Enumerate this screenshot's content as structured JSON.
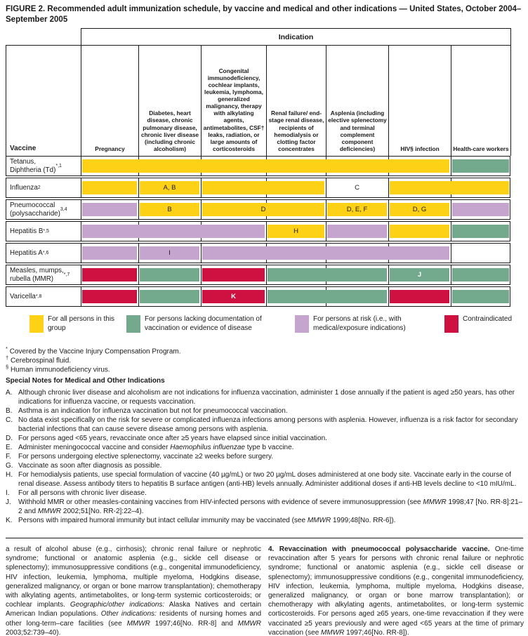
{
  "figure": {
    "title": "FIGURE 2. Recommended adult immunization schedule, by vaccine and medical and other indications — United States, October 2004–September 2005"
  },
  "colors": {
    "yellow": "#FCD116",
    "green": "#73AA8E",
    "purple": "#C5A5CE",
    "red": "#CE1141",
    "line": "#1a1a1a"
  },
  "table": {
    "indication_label": "Indication",
    "vaccine_col_header": "Vaccine",
    "columns": [
      {
        "label": "Pregnancy"
      },
      {
        "label": "Diabetes, heart disease, chronic pulmonary disease, chronic liver disease (including chronic alcoholism)"
      },
      {
        "label": "Congenital immunodeficiency, cochlear implants, leukemia, lymphoma, generalized malignancy, therapy with alkylating agents, antimetabolites, CSF† leaks, radiation, or large amounts of corticosteroids"
      },
      {
        "label": "Renal failure/ end-stage renal disease, recipients of hemodialysis or clotting factor concentrates"
      },
      {
        "label": "Asplenia (including elective splenectomy and terminal complement component deficiencies)"
      },
      {
        "label": "HIV§ infection"
      },
      {
        "label": "Health-care workers"
      }
    ],
    "rows": [
      {
        "vaccine": "Tetanus,\nDiphtheria (Td)",
        "sup": "*,1",
        "bars": [
          {
            "from": 0,
            "to": 5,
            "color": "yellow"
          },
          {
            "from": 6,
            "to": 6,
            "color": "green"
          }
        ]
      },
      {
        "vaccine": "Influenza",
        "sup": "2",
        "bars": [
          {
            "from": 0,
            "to": 0,
            "color": "yellow"
          },
          {
            "from": 1,
            "to": 1,
            "color": "yellow",
            "label": "A, B"
          },
          {
            "from": 2,
            "to": 3,
            "color": "yellow"
          },
          {
            "from": 4,
            "to": 4,
            "color": "none",
            "label": "C"
          },
          {
            "from": 5,
            "to": 6,
            "color": "yellow"
          }
        ]
      },
      {
        "vaccine": "Pneumococcal\n(polysaccharide)",
        "sup": "3,4",
        "bars": [
          {
            "from": 0,
            "to": 0,
            "color": "purple"
          },
          {
            "from": 1,
            "to": 1,
            "color": "yellow",
            "label": "B"
          },
          {
            "from": 2,
            "to": 3,
            "color": "yellow",
            "label": "D"
          },
          {
            "from": 4,
            "to": 4,
            "color": "yellow",
            "label": "D, E, F"
          },
          {
            "from": 5,
            "to": 5,
            "color": "yellow",
            "label": "D, G"
          },
          {
            "from": 6,
            "to": 6,
            "color": "purple"
          }
        ]
      },
      {
        "vaccine": "Hepatitis B",
        "sup": "*,5",
        "bars": [
          {
            "from": 0,
            "to": 2,
            "color": "purple"
          },
          {
            "from": 3,
            "to": 3,
            "color": "yellow",
            "label": "H"
          },
          {
            "from": 4,
            "to": 4,
            "color": "purple"
          },
          {
            "from": 5,
            "to": 5,
            "color": "yellow"
          },
          {
            "from": 6,
            "to": 6,
            "color": "green"
          }
        ]
      },
      {
        "vaccine": "Hepatitis A",
        "sup": "*,6",
        "bars": [
          {
            "from": 0,
            "to": 0,
            "color": "purple"
          },
          {
            "from": 1,
            "to": 1,
            "color": "purple",
            "label": "I"
          },
          {
            "from": 2,
            "to": 5,
            "color": "purple"
          }
        ]
      },
      {
        "vaccine": "Measles, mumps,\nrubella (MMR)",
        "sup": "*,7",
        "bars": [
          {
            "from": 0,
            "to": 0,
            "color": "red"
          },
          {
            "from": 1,
            "to": 1,
            "color": "green"
          },
          {
            "from": 2,
            "to": 2,
            "color": "red"
          },
          {
            "from": 3,
            "to": 4,
            "color": "green"
          },
          {
            "from": 5,
            "to": 5,
            "color": "green",
            "label": "J",
            "white": true
          },
          {
            "from": 6,
            "to": 6,
            "color": "green"
          }
        ]
      },
      {
        "vaccine": "Varicella",
        "sup": "*,8",
        "bars": [
          {
            "from": 0,
            "to": 0,
            "color": "red"
          },
          {
            "from": 1,
            "to": 1,
            "color": "green"
          },
          {
            "from": 2,
            "to": 2,
            "color": "red",
            "label": "K",
            "white": true
          },
          {
            "from": 3,
            "to": 4,
            "color": "green"
          },
          {
            "from": 5,
            "to": 5,
            "color": "red"
          },
          {
            "from": 6,
            "to": 6,
            "color": "green"
          }
        ]
      }
    ]
  },
  "legend": {
    "items": [
      {
        "color": "yellow",
        "label": "For all persons in this group"
      },
      {
        "color": "green",
        "label": "For persons lacking documentation of vaccination or evidence of disease"
      },
      {
        "color": "purple",
        "label": "For persons at risk (i.e., with medical/exposure indications)"
      },
      {
        "color": "red",
        "label": "Contraindicated"
      }
    ]
  },
  "footnotes": [
    {
      "sym": "*",
      "text": "Covered by the Vaccine Injury Compensation Program."
    },
    {
      "sym": "†",
      "text": "Cerebrospinal fluid."
    },
    {
      "sym": "§",
      "text": "Human immunodeficiency virus."
    }
  ],
  "notes": {
    "heading": "Special Notes for Medical and Other Indications",
    "items": [
      {
        "id": "A.",
        "segs": [
          [
            "Although chronic liver disease and alcoholism are not indications for influenza vaccination, administer 1 dose annually if the patient is aged ≥50 years, has other indications for influenza vaccine, or requests vaccination.",
            ""
          ]
        ]
      },
      {
        "id": "B.",
        "segs": [
          [
            "Asthma is an indication for influenza vaccination but not for pneumococcal vaccination.",
            ""
          ]
        ]
      },
      {
        "id": "C.",
        "segs": [
          [
            "No data exist specifically on the risk for severe or complicated influenza infections among persons with asplenia. However, influenza is a risk factor for secondary bacterial infections that can cause severe disease among persons with asplenia.",
            ""
          ]
        ]
      },
      {
        "id": "D.",
        "segs": [
          [
            "For persons aged <65 years, revaccinate once after ≥5 years have elapsed since initial vaccination.",
            ""
          ]
        ]
      },
      {
        "id": "E.",
        "segs": [
          [
            "Administer meningococcal vaccine and consider ",
            ""
          ],
          [
            "Haemophilus influenzae",
            "i"
          ],
          [
            " type b vaccine.",
            ""
          ]
        ]
      },
      {
        "id": "F.",
        "segs": [
          [
            "For persons undergoing elective splenectomy, vaccinate ≥2 weeks before surgery.",
            ""
          ]
        ]
      },
      {
        "id": "G.",
        "segs": [
          [
            "Vaccinate as soon after diagnosis as possible.",
            ""
          ]
        ]
      },
      {
        "id": "H.",
        "segs": [
          [
            "For hemodialysis patients, use special formulation of vaccine (40 µg/mL) or two 20 µg/mL doses administered at one body site. Vaccinate early in the course of renal disease. Assess antibody titers to hepatitis B surface antigen (anti-HB) levels annually. Administer additional doses if anti-HB levels decline to <10 mIU/mL.",
            ""
          ]
        ]
      },
      {
        "id": "I.",
        "segs": [
          [
            "For all persons with chronic liver disease.",
            ""
          ]
        ]
      },
      {
        "id": "J.",
        "segs": [
          [
            "Withhold MMR or other measles-containing vaccines from HIV-infected persons with evidence of severe immunosuppression (see ",
            ""
          ],
          [
            "MMWR",
            "i"
          ],
          [
            " 1998;47 [No. RR-8]:21–2 and ",
            ""
          ],
          [
            "MMWR",
            "i"
          ],
          [
            " 2002;51[No. RR-2]:22–4).",
            ""
          ]
        ]
      },
      {
        "id": "K.",
        "segs": [
          [
            "Persons with impaired humoral immunity but intact cellular immunity may be vaccinated (see ",
            ""
          ],
          [
            "MMWR",
            "i"
          ],
          [
            " 1999;48[No. RR-6]).",
            ""
          ]
        ]
      }
    ]
  },
  "bottom": {
    "left_segs": [
      [
        "a result of alcohol abuse (e.g., cirrhosis); chronic renal failure or nephrotic syndrome; functional or anatomic asplenia (e.g., sickle cell disease or splenectomy); immunosuppressive conditions (e.g., congenital immunodeficiency, HIV infection, leukemia, lymphoma, multiple myeloma, Hodgkins disease, generalized malignancy, or organ or bone marrow transplantation); chemotherapy with alkylating agents, antimetabolites, or long-term systemic corticosteroids; or cochlear implants. ",
        ""
      ],
      [
        "Geographic/other indications:",
        "i"
      ],
      [
        " Alaska Natives and certain American Indian populations. ",
        ""
      ],
      [
        "Other indications:",
        "i"
      ],
      [
        " residents of nursing homes and other long-term–care facilities (see ",
        ""
      ],
      [
        "MMWR",
        "i"
      ],
      [
        " 1997;46[No. RR-8] and ",
        ""
      ],
      [
        "MMWR",
        "i"
      ],
      [
        " 2003;52:739–40).",
        ""
      ]
    ],
    "right_segs": [
      [
        "4. Revaccination with pneumococcal polysaccharide vaccine.",
        "b"
      ],
      [
        " One-time revaccination after 5 years for persons with chronic renal failure or nephrotic syndrome; functional or anatomic asplenia (e.g., sickle cell disease or splenectomy); immunosuppressive conditions (e.g., congenital immunodeficiency, HIV infection, leukemia, lymphoma, multiple myeloma, Hodgkins disease, generalized malignancy, or organ or bone marrow transplantation); or chemotherapy with alkylating agents, antimetabolites, or long-term systemic corticosteroids. For persons aged ≥65 years, one-time revaccination if they were vaccinated ≥5 years previously and were aged <65 years at the time of primary vaccination (see ",
        ""
      ],
      [
        "MMWR",
        "i"
      ],
      [
        " 1997;46[No. RR-8]).",
        ""
      ]
    ]
  }
}
